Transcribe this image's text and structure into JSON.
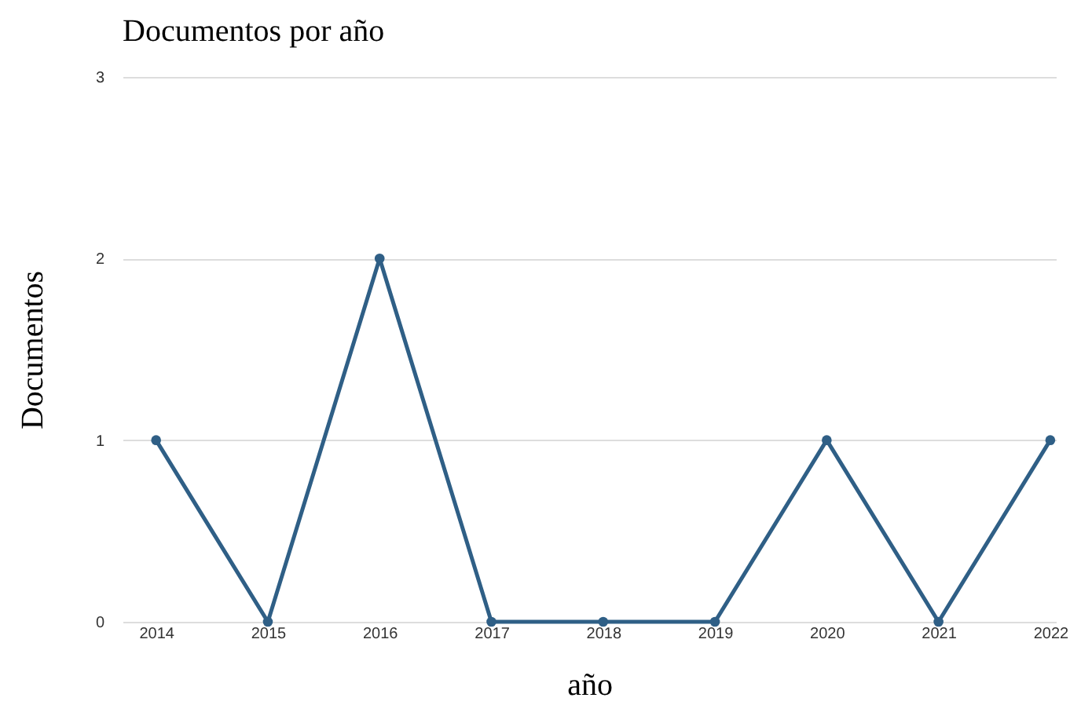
{
  "chart_data": {
    "type": "line",
    "title": "Documentos por año",
    "xlabel": "año",
    "ylabel": "Documentos",
    "categories": [
      "2014",
      "2015",
      "2016",
      "2017",
      "2018",
      "2019",
      "2020",
      "2021",
      "2022"
    ],
    "series": [
      {
        "color": "#2f5f86",
        "values": [
          1,
          0,
          2,
          0,
          0,
          0,
          1,
          0,
          1
        ]
      }
    ],
    "ylim": [
      0,
      3
    ],
    "yticks": [
      0,
      1,
      2,
      3
    ],
    "grid": "y",
    "marker": "circle",
    "line_style": "solid",
    "legend": false
  }
}
